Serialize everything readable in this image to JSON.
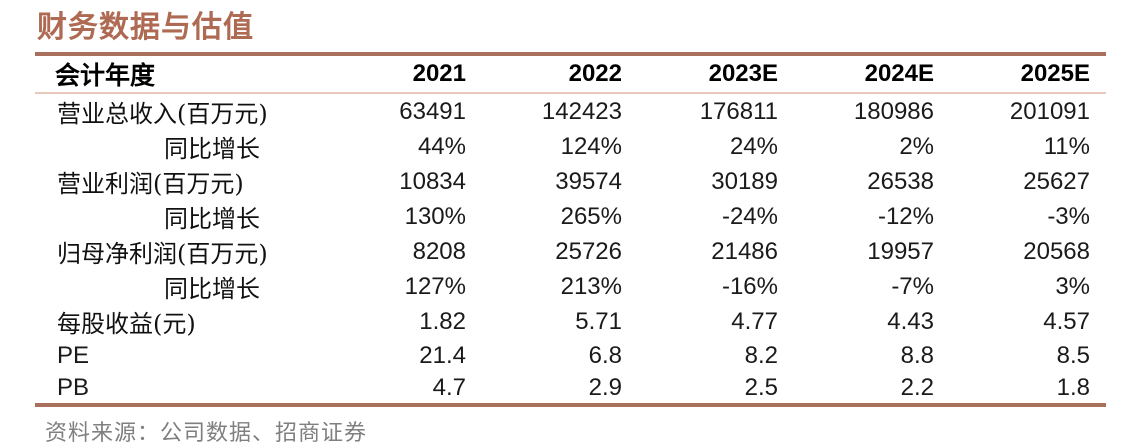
{
  "title": "财务数据与估值",
  "colors": {
    "accent": "#ae6a52",
    "rule_thick": "#a9705c",
    "rule_thin": "#e8cabc",
    "footer_text": "#7f7f7f",
    "text": "#1a1a1a"
  },
  "table": {
    "header": {
      "label": "会计年度",
      "years": [
        "2021",
        "2022",
        "2023E",
        "2024E",
        "2025E"
      ]
    },
    "rows": [
      {
        "label": "营业总收入(百万元)",
        "values": [
          "63491",
          "142423",
          "176811",
          "180986",
          "201091"
        ]
      },
      {
        "label": "同比增长",
        "values": [
          "44%",
          "124%",
          "24%",
          "2%",
          "11%"
        ]
      },
      {
        "label": "营业利润(百万元)",
        "values": [
          "10834",
          "39574",
          "30189",
          "26538",
          "25627"
        ]
      },
      {
        "label": "同比增长",
        "values": [
          "130%",
          "265%",
          "-24%",
          "-12%",
          "-3%"
        ]
      },
      {
        "label": "归母净利润(百万元)",
        "values": [
          "8208",
          "25726",
          "21486",
          "19957",
          "20568"
        ]
      },
      {
        "label": "同比增长",
        "values": [
          "127%",
          "213%",
          "-16%",
          "-7%",
          "3%"
        ]
      },
      {
        "label": "每股收益(元)",
        "values": [
          "1.82",
          "5.71",
          "4.77",
          "4.43",
          "4.57"
        ]
      },
      {
        "label": "PE",
        "values": [
          "21.4",
          "6.8",
          "8.2",
          "8.8",
          "8.5"
        ]
      },
      {
        "label": "PB",
        "values": [
          "4.7",
          "2.9",
          "2.5",
          "2.2",
          "1.8"
        ]
      }
    ]
  },
  "footer": {
    "source": "资料来源：公司数据、招商证券"
  }
}
